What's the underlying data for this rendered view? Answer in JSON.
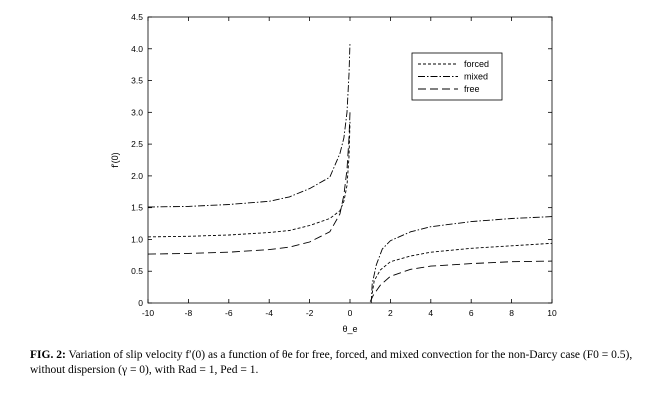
{
  "chart_data": {
    "type": "line",
    "title": "",
    "xlabel": "θ_e",
    "ylabel": "f'(0)",
    "xlim": [
      -10,
      10
    ],
    "ylim": [
      0,
      4.5
    ],
    "xticks": [
      -10,
      -8,
      -6,
      -4,
      -2,
      0,
      2,
      4,
      6,
      8,
      10
    ],
    "yticks": [
      0,
      0.5,
      1.0,
      1.5,
      2.0,
      2.5,
      3.0,
      3.5,
      4.0,
      4.5
    ],
    "xtick_labels": [
      "-10",
      "-8",
      "-6",
      "-4",
      "-2",
      "0",
      "2",
      "4",
      "6",
      "8",
      "10"
    ],
    "ytick_labels": [
      "0",
      "0.5",
      "1.0",
      "1.5",
      "2.0",
      "2.5",
      "3.0",
      "3.5",
      "4.0",
      "4.5"
    ],
    "grid": false,
    "legend_position": "top-right",
    "series": [
      {
        "name": "forced",
        "dash": "dashed-short",
        "segments": [
          [
            [
              -10,
              1.04
            ],
            [
              -8,
              1.05
            ],
            [
              -6,
              1.07
            ],
            [
              -4,
              1.11
            ],
            [
              -3,
              1.14
            ],
            [
              -2,
              1.22
            ],
            [
              -1,
              1.33
            ],
            [
              -0.5,
              1.45
            ],
            [
              -0.3,
              1.6
            ],
            [
              -0.15,
              1.85
            ],
            [
              -0.05,
              2.3
            ],
            [
              0,
              2.85
            ]
          ],
          [
            [
              1.1,
              0.15
            ],
            [
              1.2,
              0.35
            ],
            [
              1.5,
              0.52
            ],
            [
              2,
              0.65
            ],
            [
              3,
              0.74
            ],
            [
              4,
              0.8
            ],
            [
              6,
              0.86
            ],
            [
              8,
              0.9
            ],
            [
              10,
              0.94
            ]
          ]
        ]
      },
      {
        "name": "mixed",
        "dash": "dash-dot",
        "segments": [
          [
            [
              -10,
              1.51
            ],
            [
              -8,
              1.52
            ],
            [
              -6,
              1.55
            ],
            [
              -4,
              1.6
            ],
            [
              -3,
              1.67
            ],
            [
              -2,
              1.8
            ],
            [
              -1,
              1.98
            ],
            [
              -0.5,
              2.35
            ],
            [
              -0.3,
              2.6
            ],
            [
              -0.15,
              3.0
            ],
            [
              -0.05,
              3.6
            ],
            [
              0,
              4.1
            ]
          ],
          [
            [
              1.05,
              0.0
            ],
            [
              1.1,
              0.3
            ],
            [
              1.3,
              0.6
            ],
            [
              1.6,
              0.85
            ],
            [
              2,
              0.98
            ],
            [
              3,
              1.12
            ],
            [
              4,
              1.2
            ],
            [
              6,
              1.28
            ],
            [
              8,
              1.33
            ],
            [
              10,
              1.36
            ]
          ]
        ]
      },
      {
        "name": "free",
        "dash": "dashed-long",
        "segments": [
          [
            [
              -10,
              0.77
            ],
            [
              -8,
              0.78
            ],
            [
              -6,
              0.8
            ],
            [
              -4,
              0.84
            ],
            [
              -3,
              0.88
            ],
            [
              -2,
              0.96
            ],
            [
              -1,
              1.12
            ],
            [
              -0.5,
              1.4
            ],
            [
              -0.3,
              1.7
            ],
            [
              -0.15,
              2.1
            ],
            [
              -0.05,
              2.6
            ],
            [
              0,
              3.0
            ]
          ],
          [
            [
              1.0,
              0.02
            ],
            [
              1.15,
              0.12
            ],
            [
              1.5,
              0.28
            ],
            [
              2,
              0.42
            ],
            [
              3,
              0.53
            ],
            [
              4,
              0.58
            ],
            [
              6,
              0.62
            ],
            [
              8,
              0.65
            ],
            [
              10,
              0.66
            ]
          ]
        ]
      }
    ]
  },
  "caption": {
    "label": "FIG. 2:",
    "text": "Variation of slip velocity f′(0) as a function of θe for free, forced, and mixed convection for the non-Darcy case (F0 = 0.5), without dispersion (γ = 0), with Rad = 1, Ped = 1."
  }
}
